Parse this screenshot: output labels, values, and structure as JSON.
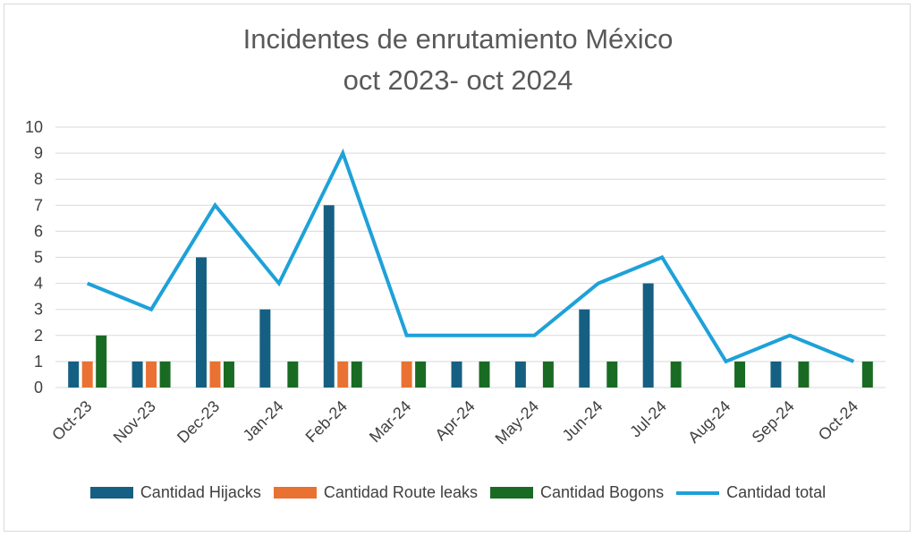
{
  "title_line1": "Incidentes de enrutamiento México",
  "title_line2": "oct 2023- oct 2024",
  "chart_data": {
    "type": "bar",
    "title": "Incidentes de enrutamiento México oct 2023- oct 2024",
    "categories": [
      "Oct-23",
      "Nov-23",
      "Dec-23",
      "Jan-24",
      "Feb-24",
      "Mar-24",
      "Apr-24",
      "May-24",
      "Jun-24",
      "Jul-24",
      "Aug-24",
      "Sep-24",
      "Oct-24"
    ],
    "ylim": [
      0,
      10
    ],
    "yticks": [
      0,
      1,
      2,
      3,
      4,
      5,
      6,
      7,
      8,
      9,
      10
    ],
    "grid": true,
    "legend_position": "bottom",
    "series": [
      {
        "name": "Cantidad Hijacks",
        "kind": "bar",
        "color": "#156082",
        "values": [
          1,
          1,
          5,
          3,
          7,
          0,
          1,
          1,
          3,
          4,
          0,
          1,
          0
        ]
      },
      {
        "name": "Cantidad Route leaks",
        "kind": "bar",
        "color": "#e97132",
        "values": [
          1,
          1,
          1,
          0,
          1,
          1,
          0,
          0,
          0,
          0,
          0,
          0,
          0
        ]
      },
      {
        "name": "Cantidad Bogons",
        "kind": "bar",
        "color": "#196b24",
        "values": [
          2,
          1,
          1,
          1,
          1,
          1,
          1,
          1,
          1,
          1,
          1,
          1,
          1
        ]
      },
      {
        "name": "Cantidad total",
        "kind": "line",
        "color": "#1ea1d9",
        "values": [
          4,
          3,
          7,
          4,
          9,
          2,
          2,
          2,
          4,
          5,
          1,
          2,
          1
        ]
      }
    ]
  }
}
